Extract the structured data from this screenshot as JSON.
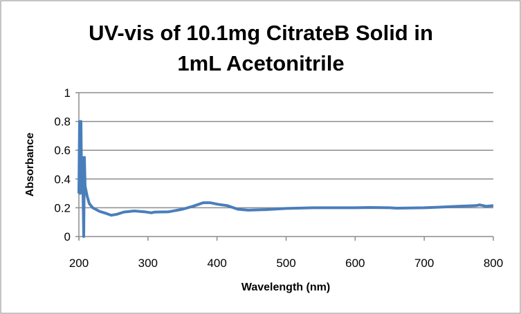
{
  "chart_data": {
    "type": "line",
    "title": "UV-vis of 10.1mg CitrateB Solid in 1mL Acetonitrile",
    "title_lines": [
      "UV-vis of 10.1mg CitrateB Solid in",
      "1mL Acetonitrile"
    ],
    "xlabel": "Wavelength (nm)",
    "ylabel": "Absorbance",
    "xlim": [
      200,
      800
    ],
    "ylim": [
      0,
      1
    ],
    "xticks": [
      "200",
      "300",
      "400",
      "500",
      "600",
      "700",
      "800"
    ],
    "yticks": [
      "0",
      "0.2",
      "0.4",
      "0.6",
      "0.8",
      "1"
    ],
    "grid": "horizontal",
    "legend": "none",
    "line_color": "#4a7ebb",
    "series": [
      {
        "x": [
          200,
          201,
          202,
          203,
          204,
          205,
          206,
          207,
          208,
          209,
          212,
          215,
          220,
          230,
          240,
          247,
          255,
          265,
          280,
          295,
          305,
          310,
          330,
          350,
          365,
          380,
          390,
          400,
          415,
          430,
          445,
          470,
          500,
          540,
          600,
          620,
          650,
          660,
          700,
          750,
          775,
          780,
          790,
          800
        ],
        "y": [
          0.3,
          0.8,
          0.3,
          0.8,
          0.35,
          0.55,
          0.3,
          0.0,
          0.55,
          0.35,
          0.28,
          0.23,
          0.2,
          0.175,
          0.16,
          0.148,
          0.155,
          0.17,
          0.178,
          0.172,
          0.165,
          0.17,
          0.172,
          0.19,
          0.21,
          0.235,
          0.235,
          0.225,
          0.215,
          0.19,
          0.183,
          0.187,
          0.195,
          0.2,
          0.2,
          0.202,
          0.2,
          0.197,
          0.2,
          0.21,
          0.215,
          0.22,
          0.21,
          0.215
        ]
      }
    ]
  }
}
